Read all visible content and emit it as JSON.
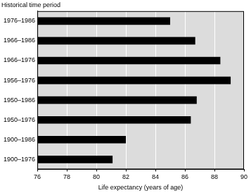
{
  "chart_data": {
    "type": "bar",
    "orientation": "horizontal",
    "ylabel": "Historical time period",
    "xlabel": "Life expectancy (years of age)",
    "categories": [
      "1976–1986",
      "1966–1986",
      "1966–1976",
      "1956–1976",
      "1950–1986",
      "1950–1976",
      "1900–1986",
      "1900–1976"
    ],
    "values": [
      85.0,
      86.7,
      88.4,
      89.1,
      86.8,
      86.4,
      82.0,
      81.1
    ],
    "color": "#000000",
    "xlim": [
      76,
      90
    ],
    "xticks": [
      76,
      78,
      80,
      82,
      84,
      86,
      88,
      90
    ],
    "grid": true
  }
}
